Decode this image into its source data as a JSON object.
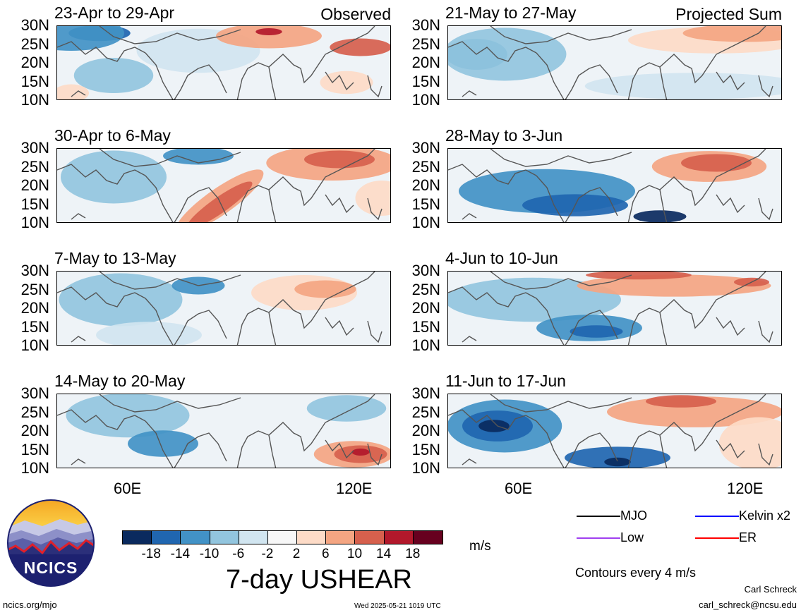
{
  "panels": [
    {
      "id": "p1",
      "title": "23-Apr to 29-Apr",
      "tag": "Observed",
      "col": 0,
      "row": 0
    },
    {
      "id": "p2",
      "title": "30-Apr to 6-May",
      "tag": "",
      "col": 0,
      "row": 1
    },
    {
      "id": "p3",
      "title": "7-May to 13-May",
      "tag": "",
      "col": 0,
      "row": 2
    },
    {
      "id": "p4",
      "title": "14-May to 20-May",
      "tag": "",
      "col": 0,
      "row": 3
    },
    {
      "id": "p5",
      "title": "21-May to 27-May",
      "tag": "Projected Sum",
      "col": 1,
      "row": 0
    },
    {
      "id": "p6",
      "title": "28-May to 3-Jun",
      "tag": "",
      "col": 1,
      "row": 1
    },
    {
      "id": "p7",
      "title": "4-Jun to 10-Jun",
      "tag": "",
      "col": 1,
      "row": 2
    },
    {
      "id": "p8",
      "title": "11-Jun to 17-Jun",
      "tag": "",
      "col": 1,
      "row": 3
    }
  ],
  "lat_labels": [
    "30N",
    "25N",
    "20N",
    "15N",
    "10N"
  ],
  "lon_labels": [
    "60E",
    "120E"
  ],
  "colorbar": {
    "colors": [
      "#0a2a5e",
      "#2066b0",
      "#4292c6",
      "#92c5de",
      "#d1e5f0",
      "#f7f7f7",
      "#fddbc7",
      "#f4a582",
      "#d6604d",
      "#b2182b",
      "#67001f"
    ],
    "labels": [
      "-18",
      "-14",
      "-10",
      "-6",
      "-2",
      "2",
      "6",
      "10",
      "14",
      "18"
    ],
    "unit": "m/s",
    "title": "7-day USHEAR"
  },
  "legend": [
    {
      "label": "MJO",
      "color": "#000000"
    },
    {
      "label": "Kelvin x2",
      "color": "#0000ff"
    },
    {
      "label": "Low",
      "color": "#a040f0"
    },
    {
      "label": "ER",
      "color": "#ff0000"
    }
  ],
  "contours_note": "Contours every 4 m/s",
  "logo_text": "NCICS",
  "footer": {
    "url": "ncics.org/mjo",
    "timestamp": "Wed 2025-05-21 1019 UTC",
    "author": "Carl Schreck",
    "email": "carl_schreck@ncsu.edu"
  }
}
